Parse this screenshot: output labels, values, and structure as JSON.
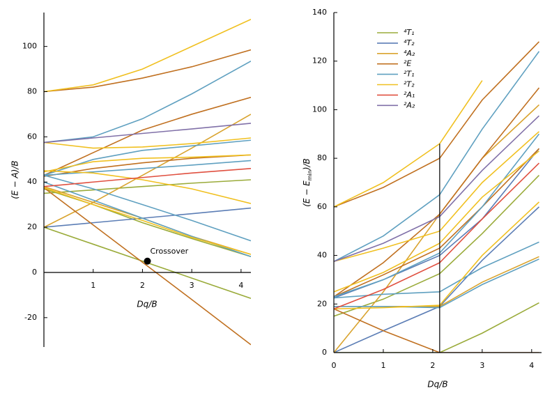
{
  "chart_data": [
    {
      "type": "line",
      "xlabel": "Dq/B",
      "ylabel": "(E − A)/B",
      "xlim": [
        0,
        4.2
      ],
      "ylim": [
        -33,
        115
      ],
      "xticks": [
        1,
        2,
        3,
        4
      ],
      "yticks": [
        -20,
        0,
        20,
        40,
        60,
        80,
        100
      ],
      "x": [
        0,
        1,
        2,
        3,
        4.2
      ],
      "annotation": {
        "text": "Crossover",
        "x": 2.1,
        "y": 5
      },
      "series": [
        {
          "color": "#9aab3a",
          "lines": [
            [
              20,
              12.5,
              5,
              -2.5,
              -11.5
            ],
            [
              37,
              30,
              22,
              15,
              7
            ],
            [
              35,
              36.5,
              38,
              39.5,
              41
            ]
          ]
        },
        {
          "color": "#5b7db5",
          "lines": [
            [
              20,
              22,
              24,
              26,
              28.5
            ]
          ]
        },
        {
          "color": "#d9a32e",
          "lines": [
            [
              20,
              31,
              43,
              55,
              70
            ],
            [
              38,
              31,
              24,
              16,
              8
            ]
          ]
        },
        {
          "color": "#c07020",
          "lines": [
            [
              37.5,
              21,
              4.5,
              -12,
              -32
            ],
            [
              80,
              82,
              86,
              91,
              98.5
            ],
            [
              43,
              53,
              63,
              70,
              77.5
            ],
            [
              42.5,
              46,
              48.5,
              50.5,
              52
            ]
          ]
        },
        {
          "color": "#5fa0c0",
          "lines": [
            [
              57.5,
              60,
              68,
              79,
              93.5
            ],
            [
              43,
              50,
              54,
              56,
              58.5
            ],
            [
              43,
              37,
              30,
              23,
              14
            ],
            [
              43,
              44.5,
              46,
              47.5,
              49.5
            ],
            [
              40,
              32,
              24,
              16,
              7
            ]
          ]
        },
        {
          "color": "#f0c020",
          "lines": [
            [
              80,
              83,
              90,
              100,
              112
            ],
            [
              57.5,
              55,
              55.5,
              57,
              59.5
            ],
            [
              45,
              44,
              41,
              37,
              30.5
            ],
            [
              44.5,
              49,
              50.5,
              51,
              52
            ],
            [
              37.5,
              30,
              23,
              15.5,
              8
            ]
          ]
        },
        {
          "color": "#e05040",
          "lines": [
            [
              38,
              40,
              42,
              44,
              46
            ]
          ]
        },
        {
          "color": "#8070a8",
          "lines": [
            [
              57.5,
              59.5,
              61.5,
              63.5,
              66
            ]
          ]
        }
      ]
    },
    {
      "type": "line",
      "xlabel": "Dq/B",
      "ylabel": [
        "(E − E",
        "min",
        ")/B"
      ],
      "xlim": [
        0,
        4.2
      ],
      "ylim": [
        0,
        140
      ],
      "xticks": [
        0,
        1,
        2,
        3,
        4
      ],
      "yticks": [
        0,
        20,
        40,
        60,
        80,
        100,
        120,
        140
      ],
      "x": [
        0,
        1,
        2.14,
        3,
        4.15
      ],
      "vline": {
        "x": 2.14,
        "y": [
          0,
          86
        ]
      },
      "legend": "upper left",
      "series": [
        {
          "name": "⁴T₁",
          "color": "#9aab3a",
          "lines": [
            [
              0,
              0,
              0,
              8,
              20.5
            ],
            [
              15,
              22,
              32.5,
              49,
              73
            ]
          ]
        },
        {
          "name": "⁴T₂",
          "color": "#5b7db5",
          "lines": [
            [
              0,
              9,
              19,
              38,
              60
            ],
            [
              22.5,
              30,
              40,
              55,
              84
            ]
          ]
        },
        {
          "name": "⁴A₂",
          "color": "#d9a32e",
          "lines": [
            [
              0,
              25,
              57,
              80,
              102
            ],
            [
              19,
              19,
              19,
              29,
              39.5
            ]
          ]
        },
        {
          "name": "²E",
          "color": "#c07020",
          "lines": [
            [
              18,
              9,
              0,
              0,
              0
            ],
            [
              60,
              68,
              80,
              104,
              128
            ],
            [
              23,
              37,
              57,
              80,
              109
            ],
            [
              23,
              32,
              43,
              60,
              84
            ]
          ]
        },
        {
          "name": "²T₁",
          "color": "#5fa0c0",
          "lines": [
            [
              37.5,
              48,
              65,
              92,
              124
            ],
            [
              23,
              30,
              41,
              60,
              90
            ],
            [
              22.5,
              24,
              25,
              35,
              45.5
            ],
            [
              19,
              19,
              18.5,
              28,
              38.5
            ]
          ]
        },
        {
          "name": "²T₂",
          "color": "#f0c020",
          "lines": [
            [
              60,
              70,
              86,
              112,
              null
            ],
            [
              37.5,
              43,
              50,
              70,
              91
            ],
            [
              25,
              33,
              45,
              64,
              83
            ],
            [
              18,
              18.5,
              19.5,
              40,
              62
            ]
          ]
        },
        {
          "name": "²A₁",
          "color": "#e05040",
          "lines": [
            [
              18,
              26,
              37,
              55,
              78
            ]
          ]
        },
        {
          "name": "²A₂",
          "color": "#8070a8",
          "lines": [
            [
              37.5,
              45,
              56,
              75,
              97.5
            ]
          ]
        }
      ]
    }
  ]
}
